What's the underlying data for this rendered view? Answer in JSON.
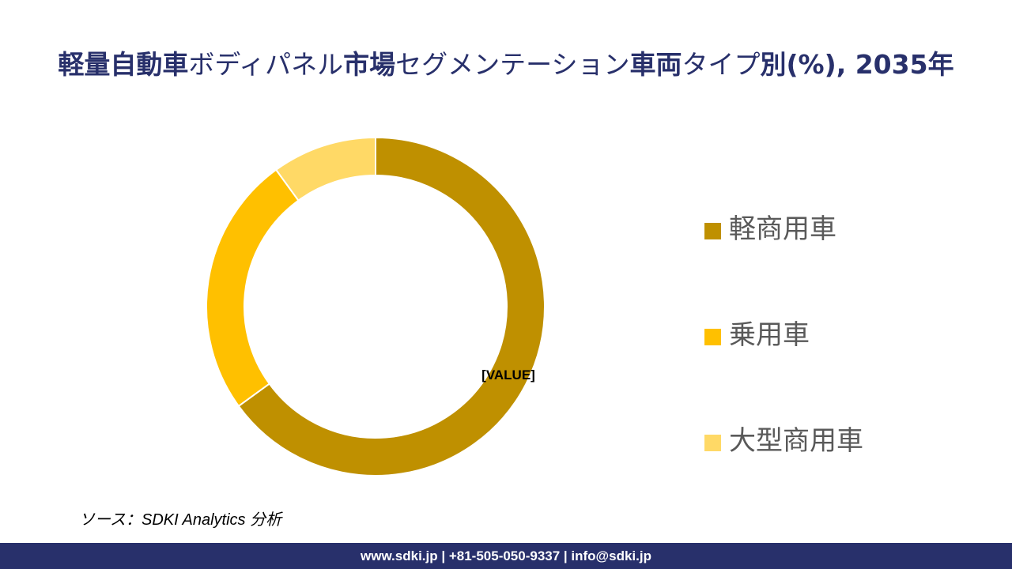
{
  "title": {
    "parts": [
      {
        "text": "軽量自動車",
        "bold": true
      },
      {
        "text": "ボディパネル",
        "bold": false
      },
      {
        "text": "市場",
        "bold": true
      },
      {
        "text": "セグメンテーション",
        "bold": false
      },
      {
        "text": "車両",
        "bold": true
      },
      {
        "text": "タイプ",
        "bold": false
      },
      {
        "text": "別(%), 2035年",
        "bold": true
      }
    ]
  },
  "chart_data": {
    "type": "pie",
    "style": "donut",
    "categories": [
      "軽商用車",
      "乗用車",
      "大型商用車"
    ],
    "values": [
      65,
      25,
      10
    ],
    "colors": [
      "#bf9000",
      "#ffc000",
      "#ffd966"
    ],
    "data_label": "[VALUE]",
    "legend_position": "right"
  },
  "source": "ソース：SDKI Analytics 分析",
  "footer": "www.sdki.jp | +81-505-050-9337 | info@sdki.jp"
}
